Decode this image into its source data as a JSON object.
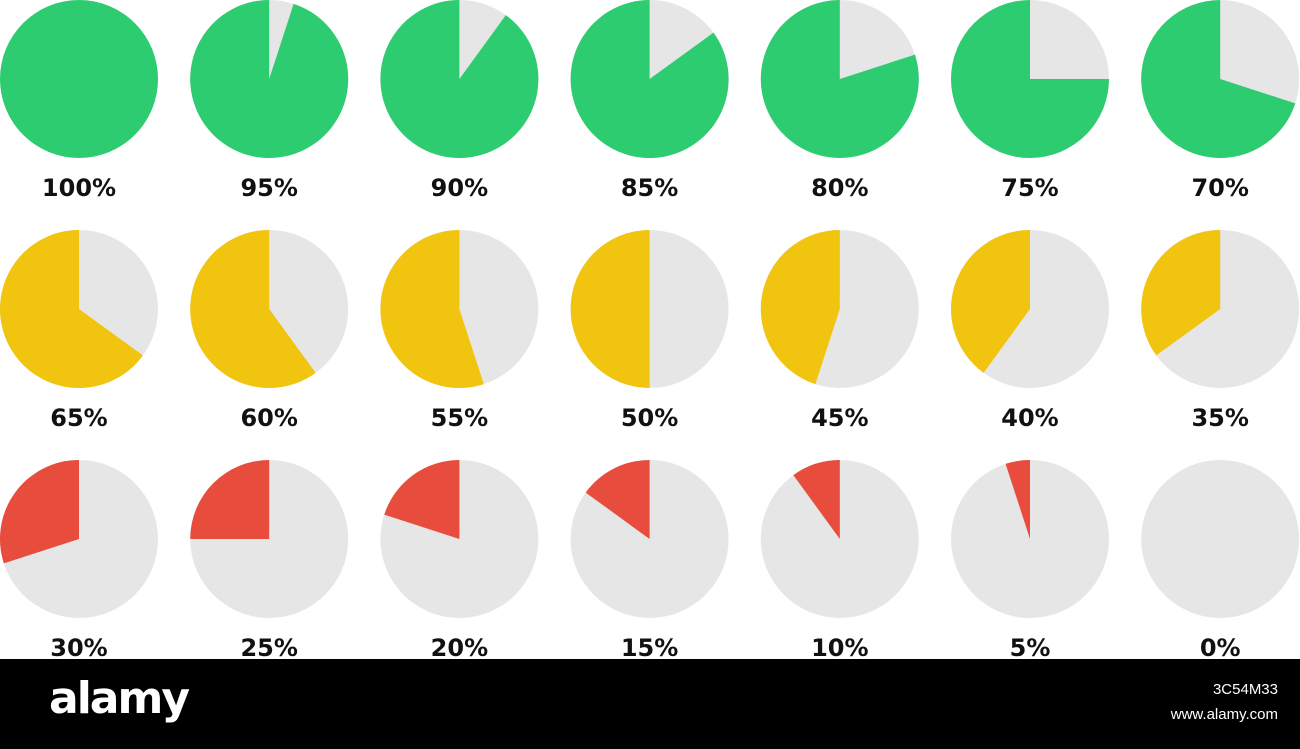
{
  "chart_data": {
    "type": "pie",
    "charts": [
      {
        "value": 100,
        "label": "100%"
      },
      {
        "value": 95,
        "label": "95%"
      },
      {
        "value": 90,
        "label": "90%"
      },
      {
        "value": 85,
        "label": "85%"
      },
      {
        "value": 80,
        "label": "80%"
      },
      {
        "value": 75,
        "label": "75%"
      },
      {
        "value": 70,
        "label": "70%"
      },
      {
        "value": 65,
        "label": "65%"
      },
      {
        "value": 60,
        "label": "60%"
      },
      {
        "value": 55,
        "label": "55%"
      },
      {
        "value": 50,
        "label": "50%"
      },
      {
        "value": 45,
        "label": "45%"
      },
      {
        "value": 40,
        "label": "40%"
      },
      {
        "value": 35,
        "label": "35%"
      },
      {
        "value": 30,
        "label": "30%"
      },
      {
        "value": 25,
        "label": "25%"
      },
      {
        "value": 20,
        "label": "20%"
      },
      {
        "value": 15,
        "label": "15%"
      },
      {
        "value": 10,
        "label": "10%"
      },
      {
        "value": 5,
        "label": "5%"
      },
      {
        "value": 0,
        "label": "0%"
      }
    ],
    "colors": {
      "high": "#2ecc71",
      "mid": "#f1c40f",
      "low": "#e74c3c",
      "remainder": "#e6e6e6"
    },
    "color_bands": [
      {
        "min": 70,
        "color_key": "high"
      },
      {
        "min": 35,
        "color_key": "mid"
      },
      {
        "min": 0,
        "color_key": "low"
      }
    ]
  },
  "watermark": {
    "logo": "alamy",
    "image_id": "3C54M33",
    "url": "www.alamy.com"
  }
}
